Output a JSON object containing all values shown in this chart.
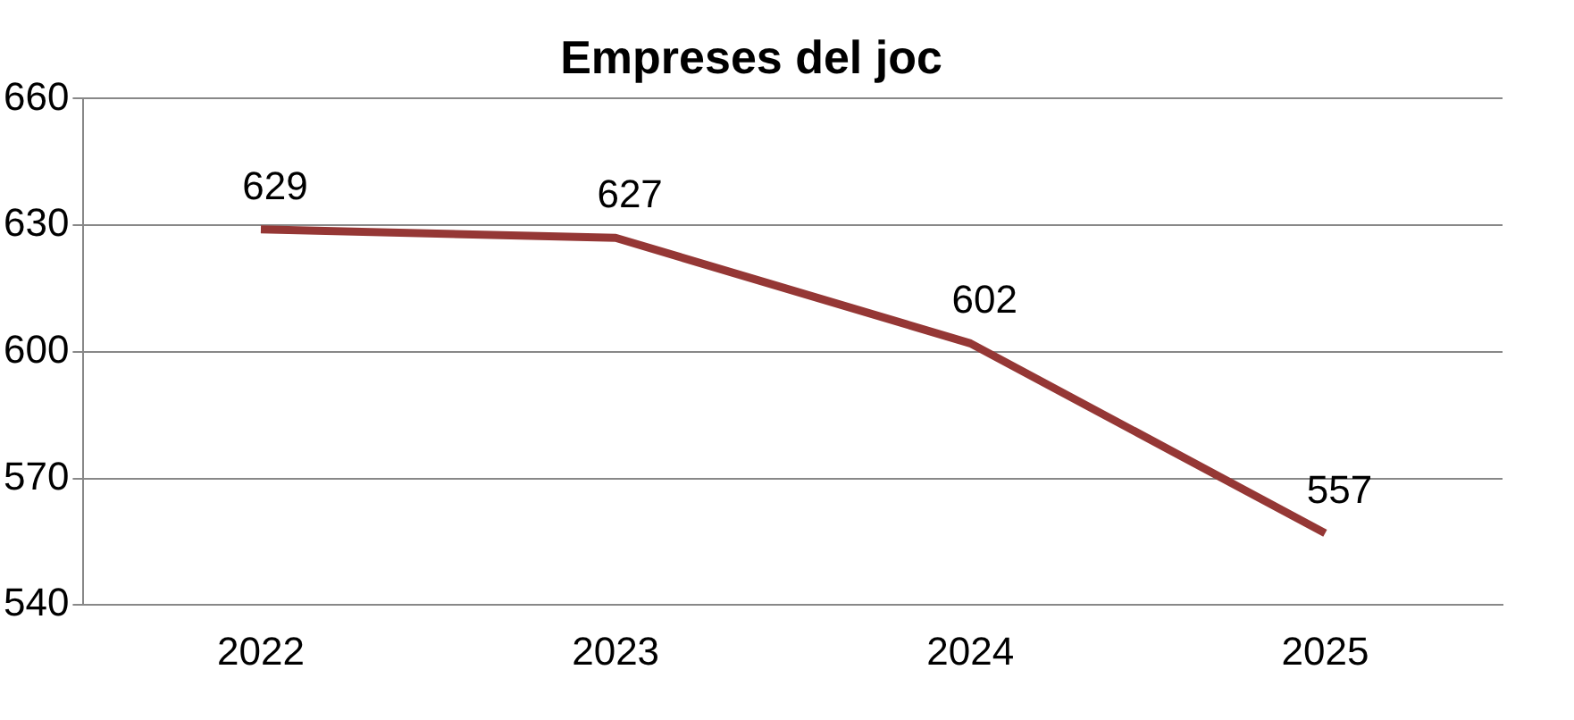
{
  "chart_data": {
    "type": "line",
    "title": "Empreses del joc",
    "categories": [
      "2022",
      "2023",
      "2024",
      "2025"
    ],
    "series": [
      {
        "color": "#953735",
        "values": [
          629,
          627,
          602,
          557
        ]
      }
    ],
    "ylim": [
      540,
      660
    ],
    "yticks": [
      540,
      570,
      600,
      630,
      660
    ],
    "grid": "y",
    "legend": false,
    "marker": "none",
    "data_labels": true
  }
}
